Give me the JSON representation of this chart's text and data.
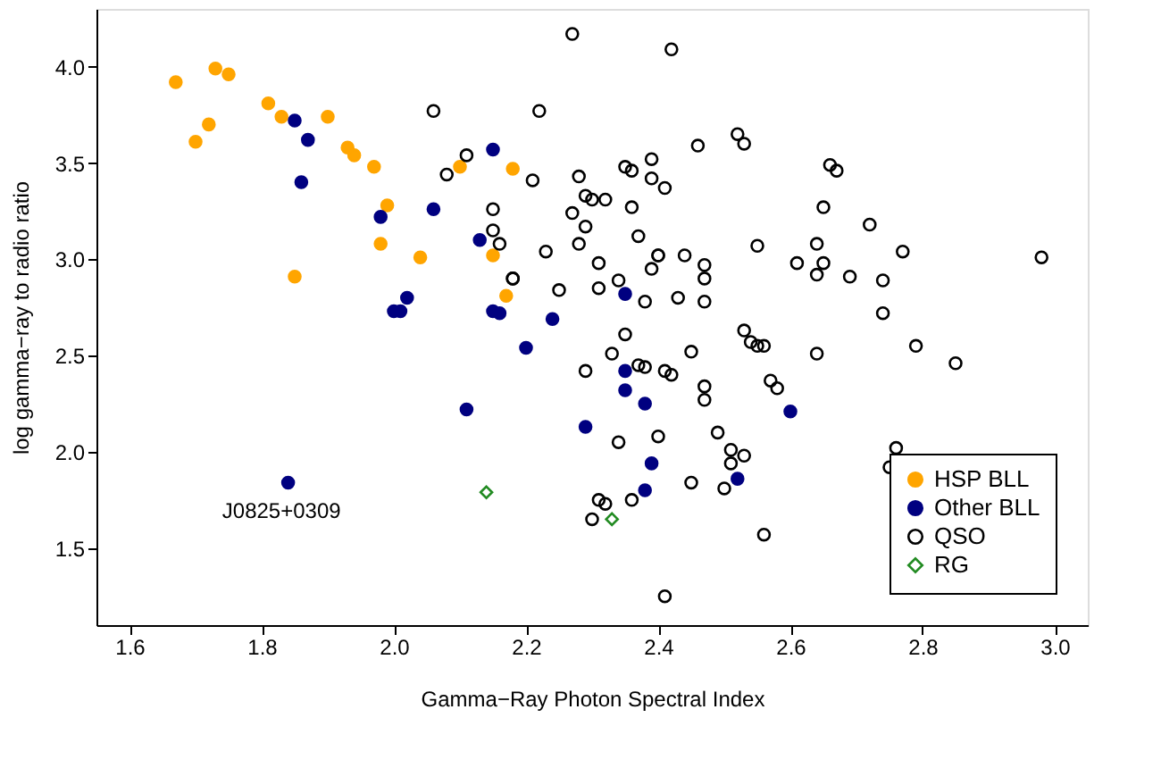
{
  "chart_data": {
    "type": "scatter",
    "xlabel": "Gamma−Ray Photon Spectral Index",
    "ylabel": "log gamma−ray to radio ratio",
    "xlim": [
      1.55,
      3.05
    ],
    "ylim": [
      1.1,
      4.3
    ],
    "xticks": [
      {
        "value": 1.6,
        "label": "1.6"
      },
      {
        "value": 1.8,
        "label": "1.8"
      },
      {
        "value": 2.0,
        "label": "2.0"
      },
      {
        "value": 2.2,
        "label": "2.2"
      },
      {
        "value": 2.4,
        "label": "2.4"
      },
      {
        "value": 2.6,
        "label": "2.6"
      },
      {
        "value": 2.8,
        "label": "2.8"
      },
      {
        "value": 3.0,
        "label": "3.0"
      }
    ],
    "yticks": [
      {
        "value": 1.5,
        "label": "1.5"
      },
      {
        "value": 2.0,
        "label": "2.0"
      },
      {
        "value": 2.5,
        "label": "2.5"
      },
      {
        "value": 3.0,
        "label": "3.0"
      },
      {
        "value": 3.5,
        "label": "3.5"
      },
      {
        "value": 4.0,
        "label": "4.0"
      }
    ],
    "grid": false,
    "legend": "bottom right",
    "annotations": [
      {
        "text": "J0825+0309",
        "x": 1.83,
        "y": 1.84
      }
    ],
    "series": [
      {
        "name": "HSP BLL",
        "color": "#ffa500",
        "marker": "circle",
        "x": [
          1.67,
          1.73,
          1.75,
          1.72,
          1.7,
          1.81,
          1.83,
          1.9,
          1.93,
          1.94,
          1.97,
          1.99,
          1.98,
          2.04,
          1.85,
          2.1,
          2.18,
          2.15,
          2.17
        ],
        "values": [
          3.92,
          3.99,
          3.96,
          3.7,
          3.61,
          3.81,
          3.74,
          3.74,
          3.58,
          3.54,
          3.48,
          3.28,
          3.08,
          3.01,
          2.91,
          3.48,
          3.47,
          3.02,
          2.81
        ]
      },
      {
        "name": "Other BLL",
        "color": "#000080",
        "marker": "circle",
        "x": [
          1.85,
          1.87,
          1.86,
          1.98,
          2.06,
          2.02,
          2.0,
          2.01,
          1.84,
          2.15,
          2.13,
          2.15,
          2.16,
          2.24,
          2.35,
          2.2,
          2.11,
          2.35,
          2.35,
          2.38,
          2.29,
          2.39,
          2.38,
          2.52,
          2.6
        ],
        "values": [
          3.72,
          3.62,
          3.4,
          3.22,
          3.26,
          2.8,
          2.73,
          2.73,
          1.84,
          3.57,
          3.1,
          2.73,
          2.72,
          2.69,
          2.82,
          2.54,
          2.22,
          2.42,
          2.32,
          2.25,
          2.13,
          1.94,
          1.8,
          1.86,
          2.21
        ]
      },
      {
        "name": "QSO",
        "color": "#000000",
        "marker": "circle",
        "x": [
          2.27,
          2.42,
          2.22,
          2.06,
          2.11,
          2.08,
          2.21,
          2.28,
          2.35,
          2.36,
          2.39,
          2.39,
          2.41,
          2.29,
          2.3,
          2.32,
          2.46,
          2.52,
          2.53,
          2.27,
          2.29,
          2.36,
          2.15,
          2.15,
          2.16,
          2.28,
          2.37,
          2.23,
          2.4,
          2.4,
          2.44,
          2.55,
          2.47,
          2.31,
          2.39,
          2.47,
          2.18,
          2.18,
          2.34,
          2.25,
          2.31,
          2.38,
          2.43,
          2.47,
          2.35,
          2.53,
          2.54,
          2.55,
          2.56,
          2.33,
          2.45,
          2.29,
          2.37,
          2.38,
          2.41,
          2.42,
          2.47,
          2.47,
          2.57,
          2.58,
          2.4,
          2.34,
          2.49,
          2.51,
          2.51,
          2.53,
          2.45,
          2.5,
          2.31,
          2.32,
          2.36,
          2.3,
          2.56,
          2.41,
          2.66,
          2.67,
          2.65,
          2.72,
          2.64,
          2.61,
          2.65,
          2.64,
          2.69,
          2.74,
          2.77,
          2.98,
          2.74,
          2.64,
          2.79,
          2.85,
          2.76,
          2.75
        ],
        "values": [
          4.17,
          4.09,
          3.77,
          3.77,
          3.54,
          3.44,
          3.41,
          3.43,
          3.48,
          3.46,
          3.52,
          3.42,
          3.37,
          3.33,
          3.31,
          3.31,
          3.59,
          3.65,
          3.6,
          3.24,
          3.17,
          3.27,
          3.26,
          3.15,
          3.08,
          3.08,
          3.12,
          3.04,
          3.02,
          3.02,
          3.02,
          3.07,
          2.97,
          2.98,
          2.95,
          2.9,
          2.9,
          2.9,
          2.89,
          2.84,
          2.85,
          2.78,
          2.8,
          2.78,
          2.61,
          2.63,
          2.57,
          2.55,
          2.55,
          2.51,
          2.52,
          2.42,
          2.45,
          2.44,
          2.42,
          2.4,
          2.34,
          2.27,
          2.37,
          2.33,
          2.08,
          2.05,
          2.1,
          2.01,
          1.94,
          1.98,
          1.84,
          1.81,
          1.75,
          1.73,
          1.75,
          1.65,
          1.57,
          1.25,
          3.49,
          3.46,
          3.27,
          3.18,
          3.08,
          2.98,
          2.98,
          2.92,
          2.91,
          2.89,
          3.04,
          3.01,
          2.72,
          2.51,
          2.55,
          2.46,
          2.02,
          1.92
        ]
      },
      {
        "name": "RG",
        "color": "#228b22",
        "marker": "diamond",
        "x": [
          2.14,
          2.33
        ],
        "values": [
          1.79,
          1.65
        ]
      }
    ]
  }
}
